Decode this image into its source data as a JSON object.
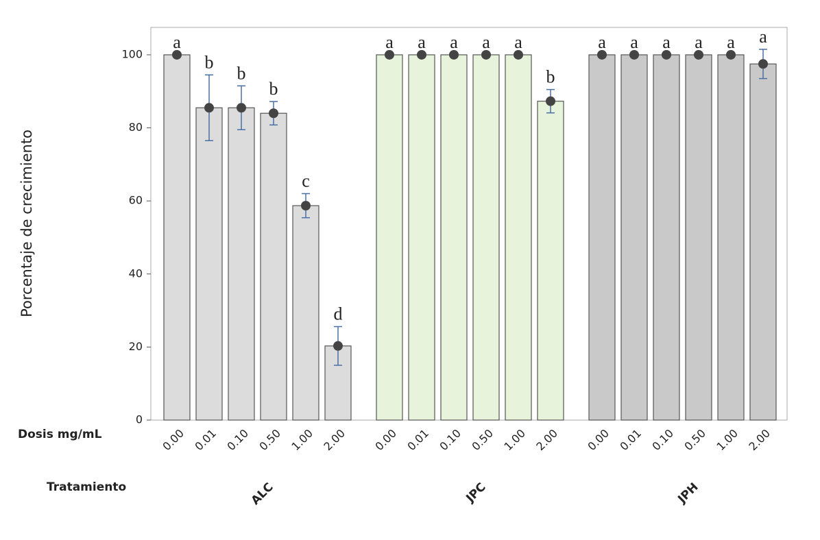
{
  "chart_data": {
    "type": "bar",
    "y_label": "Porcentaje de crecimiento",
    "x_label": "Dosis mg/mL",
    "group_label": "Tratamiento",
    "categories": [
      "0.00",
      "0.01",
      "0.10",
      "0.50",
      "1.00",
      "2.00"
    ],
    "series": [
      {
        "name": "ALC",
        "color": "#dcdcdc",
        "values": [
          100,
          85.5,
          85.5,
          84,
          58.7,
          20.3
        ],
        "errors": [
          0,
          9,
          6,
          3.2,
          3.3,
          5.3
        ],
        "letters": [
          "a",
          "b",
          "b",
          "b",
          "c",
          "d"
        ]
      },
      {
        "name": "JPC",
        "color": "#e7f3da",
        "values": [
          100,
          100,
          100,
          100,
          100,
          87.3
        ],
        "errors": [
          0,
          0,
          0,
          0,
          0,
          3.2
        ],
        "letters": [
          "a",
          "a",
          "a",
          "a",
          "a",
          "b"
        ]
      },
      {
        "name": "JPH",
        "color": "#c9c9c9",
        "values": [
          100,
          100,
          100,
          100,
          100,
          97.5
        ],
        "errors": [
          0,
          0,
          0,
          0,
          0,
          4
        ],
        "letters": [
          "a",
          "a",
          "a",
          "a",
          "a",
          "a"
        ]
      }
    ],
    "ylim": [
      0,
      107.5
    ],
    "yticks": [
      0,
      20,
      40,
      60,
      80,
      100
    ],
    "grid": false
  }
}
